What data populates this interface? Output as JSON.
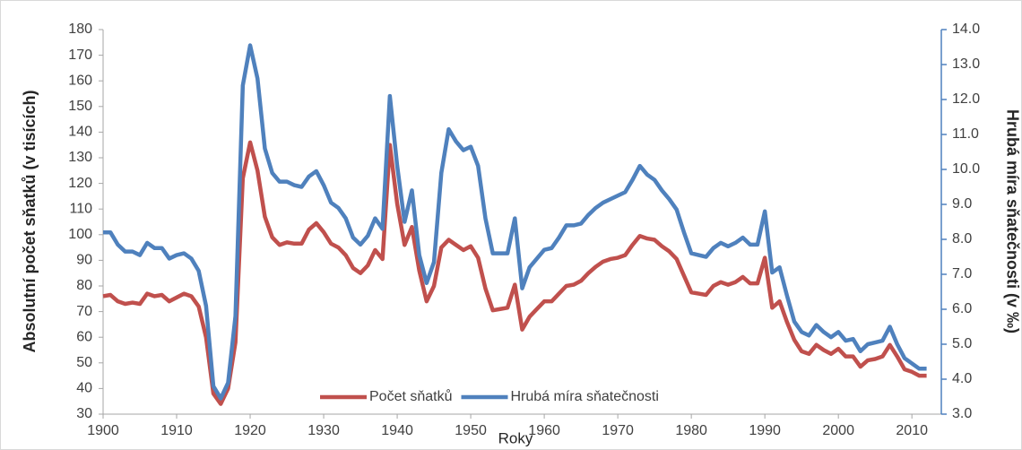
{
  "chart_data": {
    "type": "line",
    "x_label": "Roky",
    "y_label": "Absolutní počet sňatků (v tisících)",
    "y2_label": "Hrubá míra sňatečnosti (v ‰)",
    "x": [
      1900,
      1901,
      1902,
      1903,
      1904,
      1905,
      1906,
      1907,
      1908,
      1909,
      1910,
      1911,
      1912,
      1913,
      1914,
      1915,
      1916,
      1917,
      1918,
      1919,
      1920,
      1921,
      1922,
      1923,
      1924,
      1925,
      1926,
      1927,
      1928,
      1929,
      1930,
      1931,
      1932,
      1933,
      1934,
      1935,
      1936,
      1937,
      1938,
      1939,
      1940,
      1941,
      1942,
      1943,
      1944,
      1945,
      1946,
      1947,
      1948,
      1949,
      1950,
      1951,
      1952,
      1953,
      1954,
      1955,
      1956,
      1957,
      1958,
      1959,
      1960,
      1961,
      1962,
      1963,
      1964,
      1965,
      1966,
      1967,
      1968,
      1969,
      1970,
      1971,
      1972,
      1973,
      1974,
      1975,
      1976,
      1977,
      1978,
      1979,
      1980,
      1981,
      1982,
      1983,
      1984,
      1985,
      1986,
      1987,
      1988,
      1989,
      1990,
      1991,
      1992,
      1993,
      1994,
      1995,
      1996,
      1997,
      1998,
      1999,
      2000,
      2001,
      2002,
      2003,
      2004,
      2005,
      2006,
      2007,
      2008,
      2009,
      2010,
      2011,
      2012
    ],
    "series": [
      {
        "name": "Počet sňatků",
        "color": "#c0504d",
        "values": [
          76,
          76.5,
          74,
          73,
          73.5,
          73,
          77,
          76,
          76.5,
          74,
          75.5,
          77,
          76,
          72,
          60,
          38,
          34,
          40,
          58,
          122,
          136,
          125,
          107,
          99,
          96,
          97,
          96.5,
          96.5,
          102,
          104.5,
          101,
          96.5,
          95,
          92,
          87,
          85,
          88,
          94,
          90.5,
          135,
          112,
          96,
          103,
          86,
          74,
          80,
          95,
          98,
          96,
          94,
          95.5,
          91,
          79,
          70.5,
          71,
          71.5,
          80.5,
          63,
          68,
          71,
          74,
          74,
          77,
          80,
          80.5,
          82,
          85,
          87.5,
          89.5,
          90.5,
          91,
          92,
          96,
          99.5,
          98.5,
          98,
          95.5,
          93.5,
          90.5,
          84,
          77.5,
          77,
          76.5,
          80,
          81.5,
          80.5,
          81.5,
          83.5,
          81,
          81,
          91,
          71.5,
          74,
          66,
          59,
          54.5,
          53.5,
          57,
          55,
          53.5,
          55.5,
          52.5,
          52.5,
          48.5,
          51,
          51.5,
          52.5,
          57,
          52.5,
          47.5,
          46.5,
          45,
          45
        ]
      },
      {
        "name": "Hrubá míra sňatečnosti",
        "color": "#4f81bd",
        "axis": "y2",
        "values": [
          8.2,
          8.2,
          7.85,
          7.65,
          7.65,
          7.55,
          7.9,
          7.75,
          7.75,
          7.45,
          7.55,
          7.6,
          7.45,
          7.1,
          6.1,
          3.8,
          3.45,
          3.9,
          5.8,
          12.4,
          13.55,
          12.6,
          10.6,
          9.9,
          9.65,
          9.65,
          9.55,
          9.5,
          9.8,
          9.95,
          9.55,
          9.05,
          8.9,
          8.6,
          8.05,
          7.85,
          8.1,
          8.6,
          8.3,
          12.1,
          10.1,
          8.5,
          9.4,
          7.55,
          6.75,
          7.35,
          9.9,
          11.15,
          10.8,
          10.55,
          10.65,
          10.1,
          8.6,
          7.6,
          7.6,
          7.6,
          8.6,
          6.6,
          7.2,
          7.45,
          7.7,
          7.75,
          8.05,
          8.4,
          8.4,
          8.45,
          8.7,
          8.9,
          9.05,
          9.15,
          9.25,
          9.35,
          9.7,
          10.1,
          9.85,
          9.7,
          9.4,
          9.15,
          8.85,
          8.2,
          7.6,
          7.55,
          7.5,
          7.75,
          7.9,
          7.8,
          7.9,
          8.05,
          7.85,
          7.85,
          8.8,
          7.05,
          7.2,
          6.4,
          5.65,
          5.35,
          5.25,
          5.55,
          5.35,
          5.2,
          5.35,
          5.1,
          5.15,
          4.8,
          5.0,
          5.05,
          5.1,
          5.5,
          5.0,
          4.6,
          4.45,
          4.3,
          4.3
        ]
      }
    ],
    "xlim": [
      1900,
      2014
    ],
    "xticks": [
      1900,
      1910,
      1920,
      1930,
      1940,
      1950,
      1960,
      1970,
      1980,
      1990,
      2000,
      2010
    ],
    "ylim": [
      30,
      180
    ],
    "yticks": [
      30,
      40,
      50,
      60,
      70,
      80,
      90,
      100,
      110,
      120,
      130,
      140,
      150,
      160,
      170,
      180
    ],
    "y2lim": [
      3,
      14
    ],
    "y2ticks": [
      {
        "value": 3,
        "label": "3.0"
      },
      {
        "value": 4,
        "label": "4.0"
      },
      {
        "value": 5,
        "label": "5.0"
      },
      {
        "value": 6,
        "label": "6.0"
      },
      {
        "value": 7,
        "label": "7.0"
      },
      {
        "value": 8,
        "label": "8.0"
      },
      {
        "value": 9,
        "label": "9.0"
      },
      {
        "value": 10,
        "label": "10.0"
      },
      {
        "value": 11,
        "label": "11.0"
      },
      {
        "value": 12,
        "label": "12.0"
      },
      {
        "value": 13,
        "label": "13.0"
      },
      {
        "value": 14,
        "label": "14.0"
      }
    ],
    "legend": "bottom",
    "grid": false
  }
}
